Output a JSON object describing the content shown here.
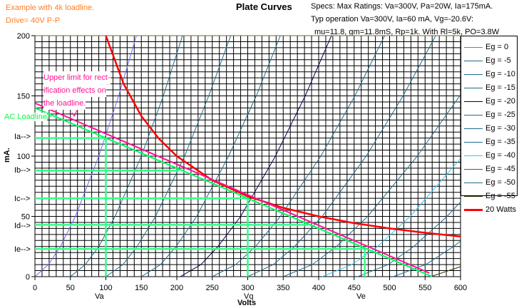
{
  "header": {
    "example_line1": "Example with 4k loadline.",
    "example_line2": "Drive= 40V P-P",
    "specs_line1": "Specs: Max Ratings: Va=300V, Pa=20W, Ia=175mA.",
    "specs_line2": "Typ operation Va=300V, Ia=60 mA, Vg=-20.6V:",
    "specs_line3": "mu=11.8, gm=11.8mS, Rp=1k. With Rl=5k, PO=3.8W"
  },
  "annotations": {
    "upper_limit_1": "Upper limit for rect-",
    "upper_limit_2": "ification effects on",
    "upper_limit_3": "the loadline.",
    "ac_loadline": "AC Loadline",
    "Ia": "Ia-->",
    "Ib": "Ib-->",
    "Ic": "Ic-->",
    "Id": "Id-->",
    "Ie": "Ie-->",
    "Va": "Va",
    "Vq": "Vq",
    "Ve": "Ve"
  },
  "chart_data": {
    "type": "line",
    "title": "Plate Curves",
    "xlabel": "Volts",
    "ylabel": "mA.",
    "xlim": [
      0,
      600
    ],
    "ylim": [
      0,
      200
    ],
    "xticks": [
      0,
      50,
      100,
      150,
      200,
      250,
      300,
      350,
      400,
      450,
      500,
      550,
      600
    ],
    "yticks": [
      0,
      50,
      100,
      150,
      200
    ],
    "grid": true,
    "grid_minor_x": 10,
    "grid_minor_y": 5,
    "legend_position": "right",
    "series": [
      {
        "name": "Eg = 0",
        "color": "#6a6aff",
        "points": [
          [
            0,
            0
          ],
          [
            19,
            10
          ],
          [
            36,
            25
          ],
          [
            57,
            50
          ],
          [
            90,
            100
          ],
          [
            118,
            150
          ],
          [
            143,
            200
          ]
        ]
      },
      {
        "name": "Eg = -5",
        "color": "#1f6b8a",
        "points": [
          [
            50,
            0
          ],
          [
            71,
            10
          ],
          [
            90,
            25
          ],
          [
            113,
            50
          ],
          [
            150,
            100
          ],
          [
            181,
            150
          ],
          [
            208,
            200
          ]
        ]
      },
      {
        "name": "Eg = -10",
        "color": "#1f6b8a",
        "points": [
          [
            100,
            0
          ],
          [
            124,
            10
          ],
          [
            144,
            25
          ],
          [
            170,
            50
          ],
          [
            211,
            100
          ],
          [
            245,
            150
          ],
          [
            276,
            200
          ]
        ]
      },
      {
        "name": "Eg = -15",
        "color": "#1f6b8a",
        "points": [
          [
            150,
            0
          ],
          [
            177,
            10
          ],
          [
            199,
            25
          ],
          [
            228,
            50
          ],
          [
            273,
            100
          ],
          [
            312,
            150
          ],
          [
            346,
            200
          ]
        ]
      },
      {
        "name": "Eg = -20",
        "color": "#000050",
        "points": [
          [
            205,
            0
          ],
          [
            234,
            10
          ],
          [
            258,
            25
          ],
          [
            290,
            50
          ],
          [
            339,
            100
          ],
          [
            381,
            150
          ],
          [
            418,
            200
          ]
        ]
      },
      {
        "name": "Eg = -25",
        "color": "#1f6b8a",
        "points": [
          [
            250,
            0
          ],
          [
            283,
            10
          ],
          [
            311,
            25
          ],
          [
            346,
            50
          ],
          [
            403,
            100
          ],
          [
            451,
            150
          ],
          [
            493,
            200
          ]
        ]
      },
      {
        "name": "Eg = -30",
        "color": "#1f6b8a",
        "points": [
          [
            300,
            0
          ],
          [
            336,
            10
          ],
          [
            366,
            25
          ],
          [
            405,
            50
          ],
          [
            467,
            100
          ],
          [
            519,
            150
          ],
          [
            565,
            200
          ]
        ]
      },
      {
        "name": "Eg = -35",
        "color": "#1f6b8a",
        "points": [
          [
            350,
            0
          ],
          [
            391,
            10
          ],
          [
            425,
            25
          ],
          [
            469,
            50
          ],
          [
            539,
            100
          ],
          [
            600,
            151
          ]
        ]
      },
      {
        "name": "Eg = -40",
        "color": "#33c4ff",
        "points": [
          [
            405,
            0
          ],
          [
            447,
            10
          ],
          [
            483,
            25
          ],
          [
            529,
            50
          ],
          [
            600,
            98
          ]
        ]
      },
      {
        "name": "Eg = -45",
        "color": "#1f6b8a",
        "points": [
          [
            455,
            0
          ],
          [
            498,
            10
          ],
          [
            534,
            25
          ],
          [
            581,
            50
          ],
          [
            600,
            62
          ]
        ]
      },
      {
        "name": "Eg = -50",
        "color": "#1f6b8a",
        "points": [
          [
            505,
            0
          ],
          [
            551,
            10
          ],
          [
            590,
            25
          ],
          [
            600,
            29.5
          ]
        ]
      },
      {
        "name": "Eg = -55",
        "color": "#2f3a00",
        "points": [
          [
            558,
            0
          ],
          [
            600,
            8.3
          ]
        ]
      },
      {
        "name": "20 Watts",
        "color": "#ff0000",
        "points": [
          [
            100,
            200
          ],
          [
            125,
            160
          ],
          [
            150,
            133.3
          ],
          [
            175,
            114.3
          ],
          [
            200,
            100
          ],
          [
            250,
            80
          ],
          [
            300,
            66.7
          ],
          [
            350,
            57.1
          ],
          [
            400,
            50
          ],
          [
            450,
            44.4
          ],
          [
            500,
            40
          ],
          [
            550,
            36.4
          ],
          [
            600,
            33.3
          ]
        ]
      }
    ],
    "loadlines": {
      "ac_loadline": {
        "color": "#00ff60",
        "points": [
          [
            0,
            140
          ],
          [
            560,
            0
          ]
        ]
      },
      "rectification_limit": {
        "color": "#ff1493",
        "points": [
          [
            0,
            144
          ],
          [
            556,
            3
          ]
        ]
      }
    },
    "operating_points": {
      "color": "#33ff88",
      "Ia": {
        "mA": 115,
        "V": 100
      },
      "Ib": {
        "mA": 88,
        "V": 203
      },
      "Ic": {
        "mA": 65,
        "V": 300
      },
      "Id": {
        "mA": 43,
        "V": 385
      },
      "Ie": {
        "mA": 23,
        "V": 465
      },
      "Va": 100,
      "Vq": 300,
      "Ve": 465
    }
  }
}
